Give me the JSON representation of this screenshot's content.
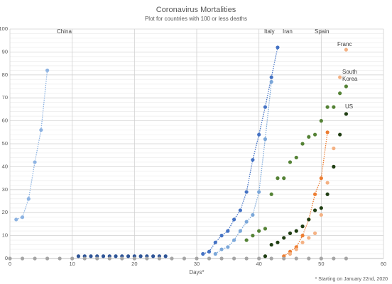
{
  "chart_data": {
    "type": "scatter",
    "title": "Coronavirus Mortalities",
    "subtitle": "Plot for countries with 100 or less deaths",
    "x_label": "Days*",
    "footnote": "* Starting on January 22nd, 2020",
    "xlim": [
      0,
      60
    ],
    "xticks": [
      0,
      10,
      20,
      30,
      40,
      50,
      60
    ],
    "ylim": [
      0,
      100
    ],
    "yticks": [
      0,
      10,
      20,
      30,
      40,
      50,
      60,
      70,
      80,
      90,
      100
    ],
    "y_minor_ticks": [
      2,
      4,
      6,
      8,
      12,
      14,
      16,
      18,
      22,
      24,
      26,
      28,
      32,
      34,
      36,
      38,
      42,
      44,
      46,
      48,
      52,
      54,
      56,
      58,
      62,
      64,
      66,
      68,
      72,
      74,
      76,
      78,
      82,
      84,
      86,
      88,
      92,
      94,
      96,
      98
    ],
    "grid": true,
    "series": [
      {
        "name": "China",
        "color": "#8db3e2",
        "line": true,
        "x": [
          1,
          2,
          3,
          4,
          5,
          6
        ],
        "values": [
          17,
          18,
          26,
          42,
          56,
          82
        ]
      },
      {
        "name": "Italy",
        "color": "#4472c4",
        "line": true,
        "x": [
          31,
          32,
          33,
          34,
          35,
          36,
          37,
          38,
          39,
          40,
          41,
          42,
          43
        ],
        "values": [
          2,
          3,
          7,
          10,
          12,
          17,
          21,
          29,
          43,
          54,
          66,
          79,
          92
        ]
      },
      {
        "name": "Iran",
        "color": "#7ba7d9",
        "line": true,
        "x": [
          33,
          34,
          35,
          36,
          37,
          38,
          39,
          40,
          41,
          42
        ],
        "values": [
          2,
          4,
          5,
          8,
          12,
          16,
          19,
          29,
          52,
          77
        ]
      },
      {
        "name": "Spain",
        "color": "#ed7d31",
        "line": true,
        "x": [
          44,
          45,
          46,
          47,
          48,
          49,
          50,
          51
        ],
        "values": [
          1,
          3,
          5,
          10,
          17,
          28,
          35,
          55
        ]
      },
      {
        "name": "Franc",
        "color": "#f4b183",
        "line": false,
        "x": [
          45,
          46,
          47,
          48,
          49,
          50,
          51,
          52,
          53,
          54
        ],
        "values": [
          2,
          4,
          7,
          9,
          11,
          19,
          33,
          48,
          79,
          91
        ]
      },
      {
        "name": "South Korea",
        "color": "#548235",
        "line": false,
        "x": [
          38,
          39,
          40,
          41,
          42,
          43,
          44,
          45,
          46,
          47,
          48,
          49,
          50,
          51,
          52,
          53,
          54
        ],
        "values": [
          8,
          10,
          12,
          13,
          28,
          35,
          35,
          42,
          44,
          50,
          53,
          54,
          60,
          66,
          66,
          72,
          75
        ]
      },
      {
        "name": "US",
        "color": "#1f3d12",
        "line": false,
        "x": [
          41,
          42,
          43,
          44,
          45,
          46,
          47,
          48,
          49,
          50,
          51,
          52,
          53,
          54
        ],
        "values": [
          1,
          6,
          7,
          9,
          11,
          12,
          14,
          17,
          21,
          22,
          28,
          40,
          54,
          63
        ]
      },
      {
        "color": "#2f5597",
        "line": false,
        "x": [
          11,
          12,
          13,
          14,
          15,
          16,
          17,
          18,
          19,
          20,
          21,
          22,
          23,
          24,
          25
        ],
        "values": [
          1,
          1,
          1,
          1,
          1,
          1,
          1,
          1,
          1,
          1,
          1,
          1,
          1,
          1,
          1
        ]
      },
      {
        "color": "#a5a5a5",
        "line": false,
        "x": [
          0,
          2,
          4,
          6,
          8,
          10,
          12,
          14,
          16,
          18,
          20,
          22,
          24,
          26,
          28,
          30,
          32,
          34,
          36,
          38,
          40,
          42,
          44,
          46,
          48,
          50,
          52,
          54
        ],
        "values": [
          0,
          0,
          0,
          0,
          0,
          0,
          0,
          0,
          0,
          0,
          0,
          0,
          0,
          0,
          0,
          0,
          0,
          0,
          0,
          0,
          0,
          0,
          0,
          0,
          0,
          0,
          0,
          0
        ]
      }
    ]
  }
}
